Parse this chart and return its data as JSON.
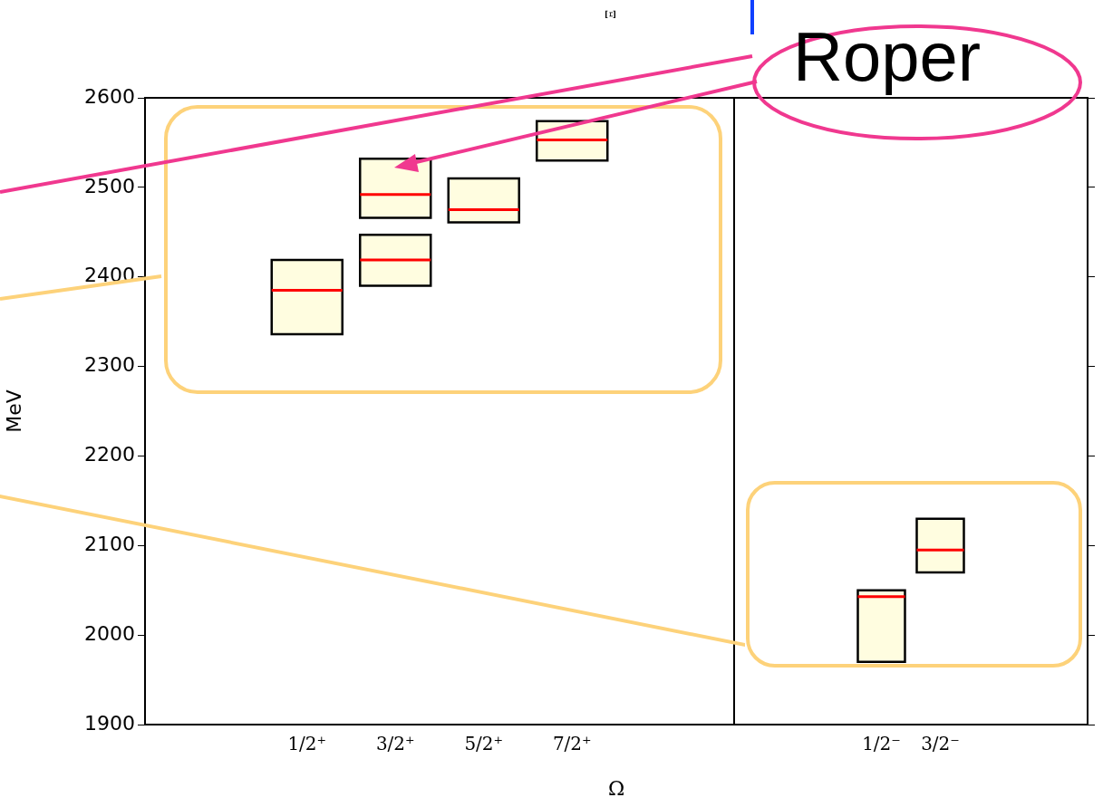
{
  "chart_data": [
    {
      "type": "box",
      "title": "Ξ",
      "ylabel": "MeV",
      "xlabel": "Ω",
      "categories": [
        "1/2⁺",
        "3/2⁺",
        "5/2⁺",
        "7/2⁺"
      ],
      "series": [
        {
          "color": "#fffde0",
          "boxes": [
            {
              "low": 2336,
              "q1": 2336,
              "median": 2385,
              "q3": 2419,
              "high": 2419
            },
            {
              "low": 2390,
              "q1": 2390,
              "median": 2419,
              "q3": 2447,
              "high": 2447
            },
            {
              "low": 2461,
              "q1": 2461,
              "median": 2475,
              "q3": 2510,
              "high": 2510
            },
            {
              "low": 2530,
              "q1": 2530,
              "median": 2553,
              "q3": 2574,
              "high": 2574
            }
          ]
        },
        {
          "color": "#fffde0",
          "boxes": [
            null,
            {
              "low": 2466,
              "q1": 2466,
              "median": 2492,
              "q3": 2532,
              "high": 2532
            },
            null,
            null
          ]
        }
      ],
      "ylim": [
        1900,
        2600
      ],
      "yticks": [
        1900,
        2000,
        2100,
        2200,
        2300,
        2400,
        2500,
        2600
      ],
      "grid": false,
      "legend": false,
      "annotations": [
        "Roper"
      ]
    },
    {
      "type": "box",
      "categories": [
        "1/2⁻",
        "3/2⁻"
      ],
      "series": [
        {
          "color": "#fffde0",
          "boxes": [
            {
              "low": 1970,
              "q1": 1970,
              "median": 2043,
              "q3": 2050,
              "high": 2050
            },
            {
              "low": 2070,
              "q1": 2070,
              "median": 2095,
              "q3": 2130,
              "high": 2130
            }
          ]
        }
      ],
      "ylim": [
        1900,
        2600
      ],
      "yticks": [
        1900,
        2000,
        2100,
        2200,
        2300,
        2400,
        2500,
        2600
      ],
      "grid": false,
      "legend": false,
      "tick_labels": "x"
    }
  ]
}
